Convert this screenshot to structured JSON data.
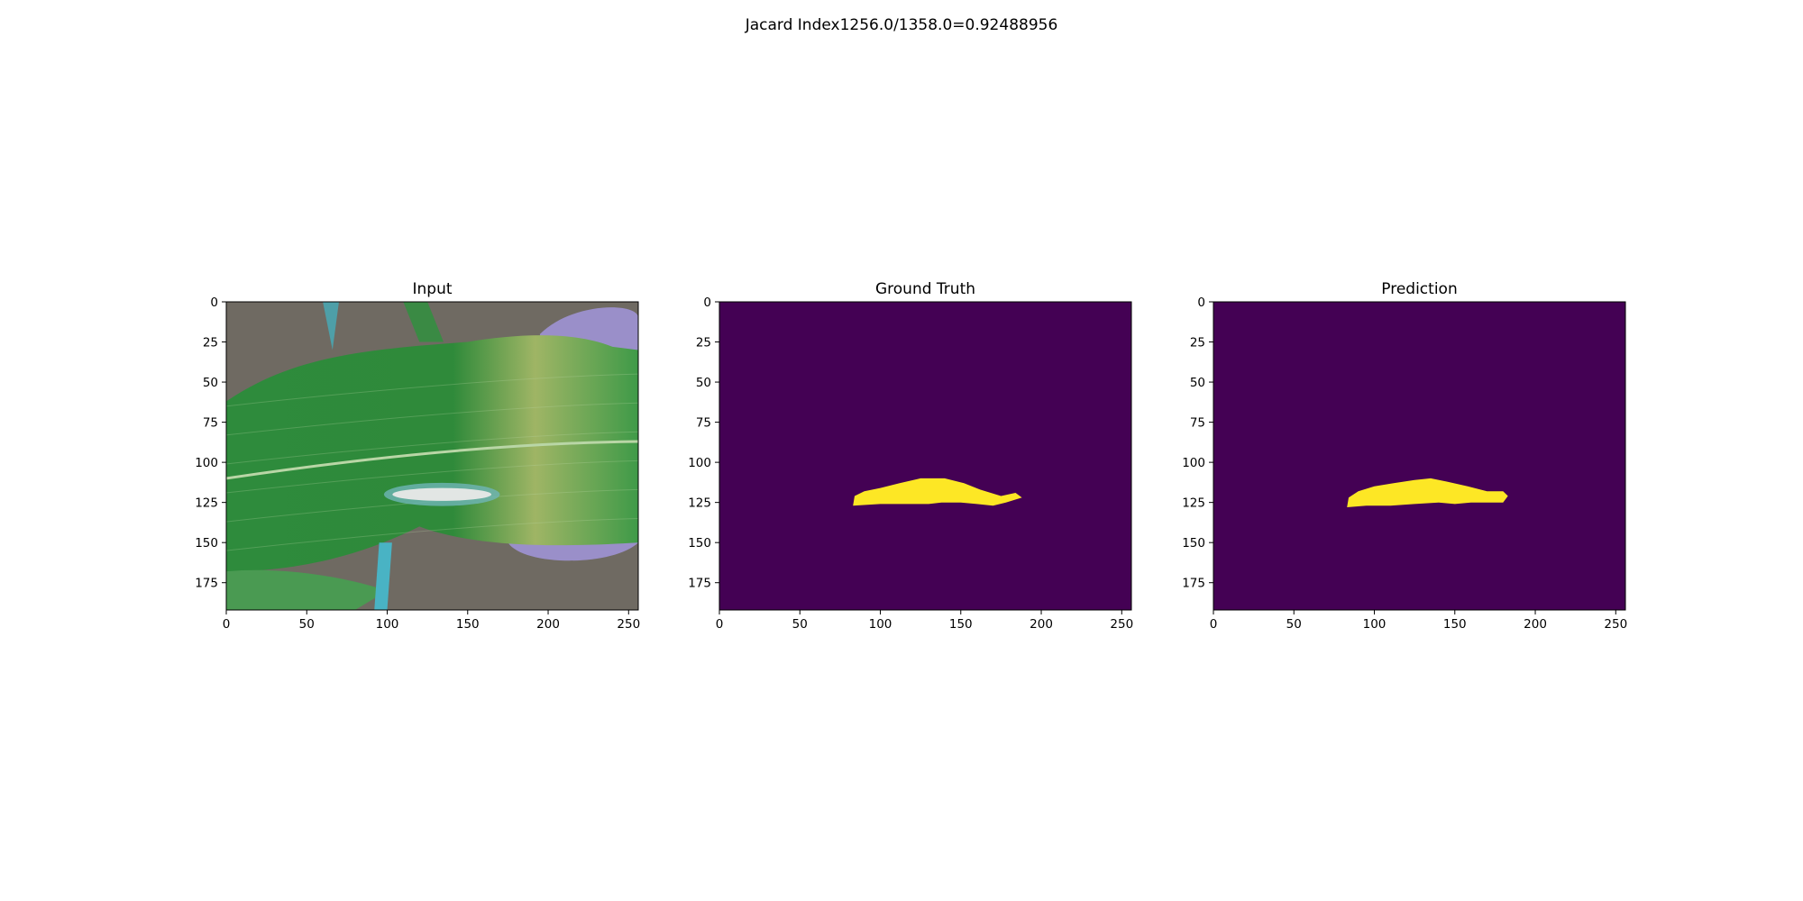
{
  "figure": {
    "suptitle": "Jacard Index1256.0/1358.0=0.92488956"
  },
  "chart_data": [
    {
      "type": "image",
      "title": "Input",
      "xlim": [
        0,
        256
      ],
      "ylim": [
        192,
        0
      ],
      "x_ticks": [
        0,
        50,
        100,
        150,
        200,
        250
      ],
      "y_ticks": [
        0,
        25,
        50,
        75,
        100,
        125,
        150,
        175
      ],
      "content": "photo-leaf-with-lesion",
      "colors": {
        "background_soil": "#6f6a62",
        "leaf": "#2f8a3a",
        "leaf_light": "#9fb565",
        "lesion": "#e2e6e4",
        "glove": "#9a8fc9"
      }
    },
    {
      "type": "image",
      "title": "Ground Truth",
      "xlim": [
        0,
        256
      ],
      "ylim": [
        192,
        0
      ],
      "x_ticks": [
        0,
        50,
        100,
        150,
        200,
        250
      ],
      "y_ticks": [
        0,
        25,
        50,
        75,
        100,
        125,
        150,
        175
      ],
      "content": "mask",
      "colors": {
        "background": "#440154",
        "foreground": "#fde725"
      },
      "mask_outline": [
        [
          83,
          127
        ],
        [
          84,
          121
        ],
        [
          90,
          118
        ],
        [
          100,
          116
        ],
        [
          112,
          113
        ],
        [
          125,
          110
        ],
        [
          140,
          110
        ],
        [
          152,
          113
        ],
        [
          162,
          117
        ],
        [
          175,
          121
        ],
        [
          184,
          119
        ],
        [
          188,
          122
        ],
        [
          178,
          125
        ],
        [
          170,
          127
        ],
        [
          160,
          126
        ],
        [
          150,
          125
        ],
        [
          138,
          125
        ],
        [
          130,
          126
        ],
        [
          115,
          126
        ],
        [
          100,
          126
        ]
      ]
    },
    {
      "type": "image",
      "title": "Prediction",
      "xlim": [
        0,
        256
      ],
      "ylim": [
        192,
        0
      ],
      "x_ticks": [
        0,
        50,
        100,
        150,
        200,
        250
      ],
      "y_ticks": [
        0,
        25,
        50,
        75,
        100,
        125,
        150,
        175
      ],
      "content": "mask",
      "colors": {
        "background": "#440154",
        "foreground": "#fde725"
      },
      "mask_outline": [
        [
          83,
          128
        ],
        [
          84,
          122
        ],
        [
          90,
          118
        ],
        [
          100,
          115
        ],
        [
          112,
          113
        ],
        [
          125,
          111
        ],
        [
          135,
          110
        ],
        [
          145,
          112
        ],
        [
          158,
          115
        ],
        [
          170,
          118
        ],
        [
          180,
          118
        ],
        [
          183,
          121
        ],
        [
          180,
          125
        ],
        [
          170,
          125
        ],
        [
          160,
          125
        ],
        [
          150,
          126
        ],
        [
          140,
          125
        ],
        [
          125,
          126
        ],
        [
          110,
          127
        ],
        [
          95,
          127
        ]
      ]
    }
  ]
}
